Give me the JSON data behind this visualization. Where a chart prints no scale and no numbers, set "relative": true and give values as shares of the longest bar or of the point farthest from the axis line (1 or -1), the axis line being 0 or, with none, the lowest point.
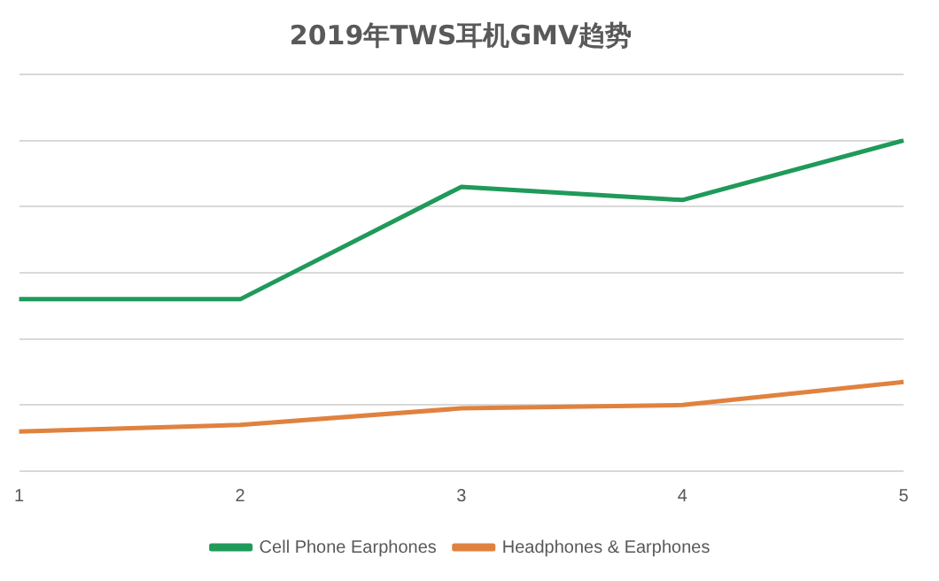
{
  "chart_data": {
    "type": "line",
    "title": "2019年TWS耳机GMV趋势",
    "categories": [
      "1",
      "2",
      "3",
      "4",
      "5"
    ],
    "relative": true,
    "grid": "y",
    "legend": "bottom",
    "marker": "none",
    "series": [
      {
        "name": "Cell Phone Earphones",
        "color": "#1f9a5a",
        "values": [
          0.52,
          0.52,
          0.86,
          0.82,
          1.0
        ]
      },
      {
        "name": "Headphones & Earphones",
        "color": "#e0823f",
        "values": [
          0.12,
          0.14,
          0.19,
          0.2,
          0.27
        ]
      }
    ]
  }
}
